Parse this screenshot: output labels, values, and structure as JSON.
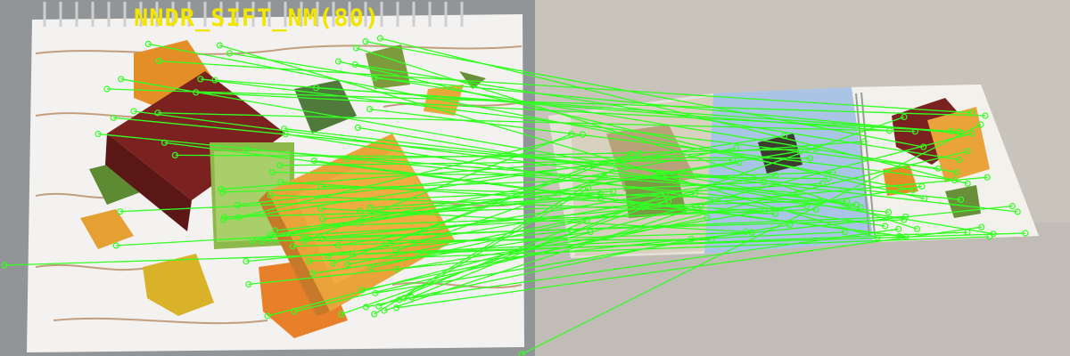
{
  "title": "NNDR_SIFT_NM(80)",
  "colors": {
    "title": "#f2e600",
    "match_line": "#33ff22",
    "keypoint": "#33ff22",
    "left_background": "#8a8e92",
    "right_background": "#c5c0b8",
    "paper": "#f4f3f1",
    "wood_lines": "#b98a63",
    "book_red": "#7a2020",
    "book_green": "#8fb84a",
    "book_orange": "#e9a33b",
    "leaf_orange": "#e7902a",
    "leaf_green": "#6b8c35",
    "spiral": "#d8d8d8",
    "blue_page": "#a9c5e6"
  },
  "images": {
    "left": "Photo of a spiral sketchbook with an autumn illustration of stacked books and leaves",
    "right": "Photo of the same illustration on an opened sketchbook lying on a table, seen from an angle"
  },
  "match_count": 80
}
